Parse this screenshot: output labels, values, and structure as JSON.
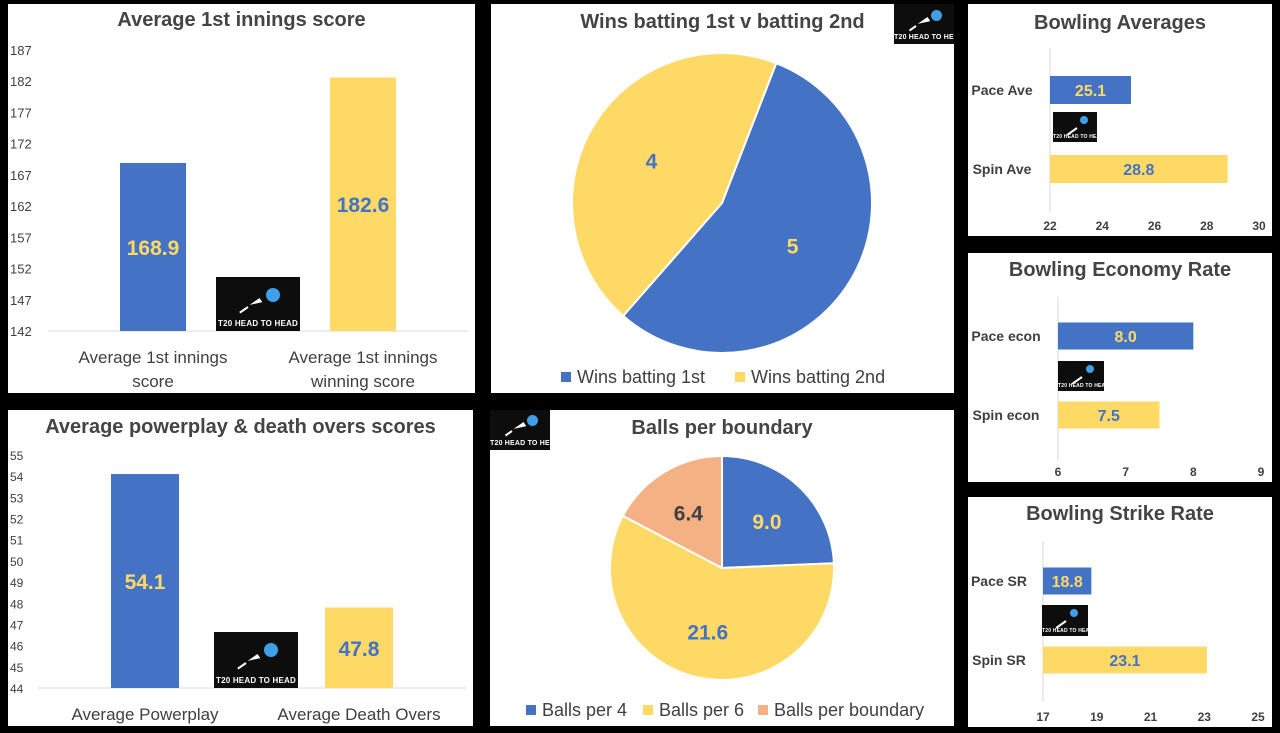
{
  "colors": {
    "blue": "#4472c4",
    "yellow": "#ffd966",
    "salmon": "#f4b183",
    "label_blue": "#4472c4",
    "label_yellow": "#ffd966",
    "dark": "#404040",
    "axis": "#595959"
  },
  "logo_text": "T20 HEAD TO HEAD",
  "chart_data": [
    {
      "id": "first-innings",
      "type": "bar",
      "title": "Average 1st innings score",
      "categories": [
        "Average 1st innings score",
        "Average 1st innings winning score"
      ],
      "values": [
        168.9,
        182.6
      ],
      "data_labels": [
        "168.9",
        "182.6"
      ],
      "yticks": [
        "142",
        "147",
        "152",
        "157",
        "162",
        "167",
        "172",
        "177",
        "182",
        "187"
      ],
      "ylim": [
        142,
        187
      ]
    },
    {
      "id": "wins-pie",
      "type": "pie",
      "title": "Wins batting 1st v batting 2nd",
      "labels": [
        "Wins batting 1st",
        "Wins batting 2nd"
      ],
      "values": [
        5,
        4
      ],
      "data_labels": [
        "5",
        "4"
      ]
    },
    {
      "id": "bowling-averages",
      "type": "bar",
      "orientation": "horizontal",
      "title": "Bowling Averages",
      "categories": [
        "Pace Ave",
        "Spin Ave"
      ],
      "values": [
        25.1,
        28.8
      ],
      "data_labels": [
        "25.1",
        "28.8"
      ],
      "xticks": [
        "22",
        "24",
        "26",
        "28",
        "30"
      ],
      "xlim": [
        22,
        30
      ]
    },
    {
      "id": "powerplay-death",
      "type": "bar",
      "title": "Average powerplay & death overs scores",
      "categories": [
        "Average Powerplay",
        "Average Death Overs"
      ],
      "values": [
        54.1,
        47.8
      ],
      "data_labels": [
        "54.1",
        "47.8"
      ],
      "yticks": [
        "44",
        "45",
        "46",
        "47",
        "48",
        "49",
        "50",
        "51",
        "52",
        "53",
        "54",
        "55"
      ],
      "ylim": [
        44,
        55
      ]
    },
    {
      "id": "balls-boundary",
      "type": "pie",
      "title": "Balls per boundary",
      "labels": [
        "Balls per 4",
        "Balls per 6",
        "Balls per boundary"
      ],
      "values": [
        9.0,
        21.6,
        6.4
      ],
      "data_labels": [
        "9.0",
        "21.6",
        "6.4"
      ]
    },
    {
      "id": "economy",
      "type": "bar",
      "orientation": "horizontal",
      "title": "Bowling Economy Rate",
      "categories": [
        "Pace econ",
        "Spin econ"
      ],
      "values": [
        8.0,
        7.5
      ],
      "data_labels": [
        "8.0",
        "7.5"
      ],
      "xticks": [
        "6",
        "7",
        "8",
        "9"
      ],
      "xlim": [
        6,
        9
      ]
    },
    {
      "id": "strike-rate",
      "type": "bar",
      "orientation": "horizontal",
      "title": "Bowling Strike Rate",
      "categories": [
        "Pace SR",
        "Spin SR"
      ],
      "values": [
        18.8,
        23.1
      ],
      "data_labels": [
        "18.8",
        "23.1"
      ],
      "xticks": [
        "17",
        "19",
        "21",
        "23",
        "25"
      ],
      "xlim": [
        17,
        25
      ]
    }
  ]
}
